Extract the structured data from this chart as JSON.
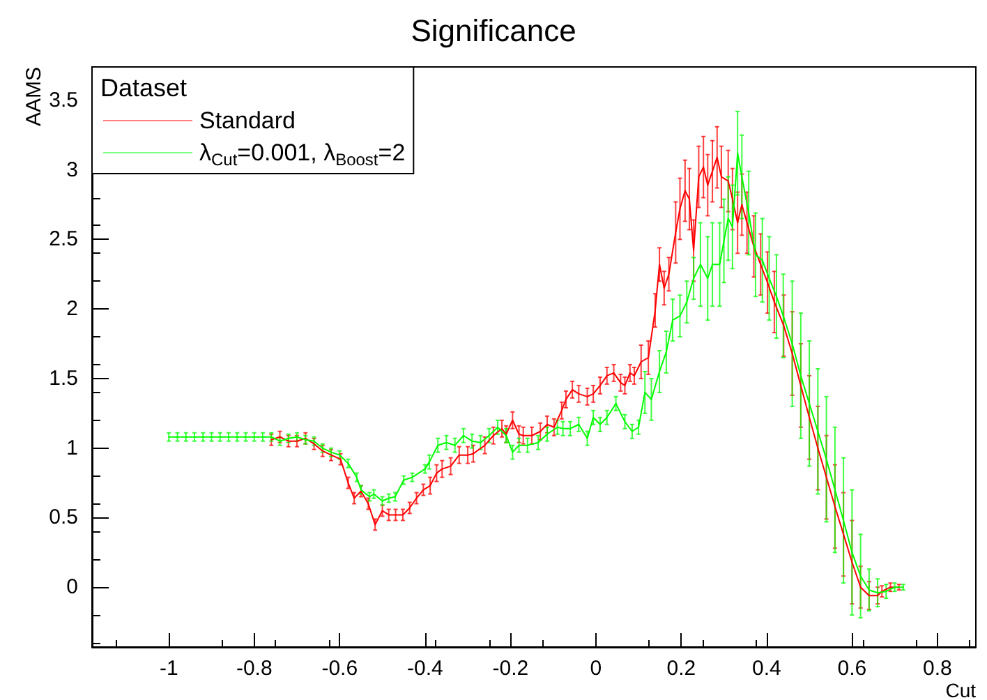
{
  "chart_data": {
    "type": "line",
    "title": "Significance",
    "xlabel": "Cut",
    "ylabel": "AAMS",
    "legend_title": "Dataset",
    "legend": "top left",
    "marker": "none",
    "grid": false,
    "xlim": [
      -1.18,
      0.89
    ],
    "ylim": [
      -0.43,
      3.74
    ],
    "xticks": [
      -1,
      -0.8,
      -0.6,
      -0.4,
      -0.2,
      0,
      0.2,
      0.4,
      0.6,
      0.8
    ],
    "yticks": [
      0,
      0.5,
      1,
      1.5,
      2,
      2.5,
      3,
      3.5
    ],
    "series": [
      {
        "name": "Standard",
        "color": "#ff0000",
        "x": [
          -0.76,
          -0.74,
          -0.72,
          -0.7,
          -0.68,
          -0.66,
          -0.64,
          -0.62,
          -0.598,
          -0.58,
          -0.566,
          -0.55,
          -0.533,
          -0.517,
          -0.5,
          -0.485,
          -0.469,
          -0.452,
          -0.436,
          -0.42,
          -0.404,
          -0.388,
          -0.373,
          -0.36,
          -0.34,
          -0.32,
          -0.3,
          -0.287,
          -0.26,
          -0.24,
          -0.22,
          -0.21,
          -0.195,
          -0.18,
          -0.17,
          -0.15,
          -0.13,
          -0.114,
          -0.098,
          -0.08,
          -0.07,
          -0.055,
          -0.04,
          -0.02,
          -0.006,
          0.01,
          0.026,
          0.042,
          0.058,
          0.068,
          0.08,
          0.09,
          0.106,
          0.123,
          0.139,
          0.149,
          0.16,
          0.171,
          0.187,
          0.197,
          0.209,
          0.219,
          0.229,
          0.241,
          0.252,
          0.262,
          0.273,
          0.284,
          0.294,
          0.31,
          0.32,
          0.332,
          0.342,
          0.354,
          0.37,
          0.386,
          0.402,
          0.418,
          0.44,
          0.46,
          0.48,
          0.5,
          0.52,
          0.54,
          0.56,
          0.58,
          0.6,
          0.62,
          0.64,
          0.66,
          0.67,
          0.69,
          0.71
        ],
        "values": [
          1.06,
          1.08,
          1.05,
          1.05,
          1.07,
          1.03,
          0.98,
          0.95,
          0.92,
          0.75,
          0.64,
          0.69,
          0.6,
          0.45,
          0.55,
          0.52,
          0.52,
          0.52,
          0.57,
          0.64,
          0.7,
          0.73,
          0.82,
          0.85,
          0.87,
          0.95,
          0.95,
          0.96,
          1.02,
          1.09,
          1.14,
          1.1,
          1.2,
          1.1,
          1.09,
          1.09,
          1.12,
          1.17,
          1.15,
          1.27,
          1.35,
          1.42,
          1.39,
          1.37,
          1.39,
          1.45,
          1.52,
          1.54,
          1.47,
          1.45,
          1.54,
          1.52,
          1.62,
          1.65,
          1.99,
          2.32,
          2.15,
          2.25,
          2.55,
          2.72,
          2.85,
          2.79,
          2.42,
          2.95,
          3.02,
          2.89,
          2.99,
          3.09,
          2.95,
          2.92,
          2.79,
          2.62,
          2.75,
          2.62,
          2.45,
          2.32,
          2.19,
          2.05,
          1.88,
          1.68,
          1.45,
          1.22,
          1.0,
          0.79,
          0.58,
          0.38,
          0.18,
          0,
          -0.06,
          -0.06,
          -0.03,
          0,
          0
        ],
        "errors": [
          0.04,
          0.04,
          0.04,
          0.04,
          0.04,
          0.04,
          0.04,
          0.04,
          0.04,
          0.04,
          0.04,
          0.04,
          0.04,
          0.04,
          0.04,
          0.04,
          0.04,
          0.04,
          0.04,
          0.04,
          0.04,
          0.06,
          0.06,
          0.06,
          0.06,
          0.06,
          0.06,
          0.06,
          0.06,
          0.06,
          0.06,
          0.06,
          0.06,
          0.06,
          0.06,
          0.06,
          0.06,
          0.06,
          0.06,
          0.06,
          0.06,
          0.06,
          0.06,
          0.06,
          0.06,
          0.06,
          0.06,
          0.06,
          0.06,
          0.06,
          0.06,
          0.06,
          0.12,
          0.12,
          0.12,
          0.12,
          0.12,
          0.12,
          0.22,
          0.22,
          0.22,
          0.22,
          0.22,
          0.22,
          0.22,
          0.22,
          0.22,
          0.22,
          0.22,
          0.22,
          0.22,
          0.22,
          0.22,
          0.22,
          0.22,
          0.22,
          0.22,
          0.22,
          0.22,
          0.3,
          0.3,
          0.3,
          0.3,
          0.3,
          0.3,
          0.3,
          0.3,
          0.15,
          0.1,
          0.06,
          0.04,
          0.03,
          0.02
        ]
      },
      {
        "name": "λ$_{Cut}$=0.001, λ$_{Boost}$=2",
        "color": "#00ff00",
        "x": [
          -1,
          -0.98,
          -0.96,
          -0.94,
          -0.92,
          -0.9,
          -0.88,
          -0.86,
          -0.84,
          -0.82,
          -0.8,
          -0.78,
          -0.76,
          -0.74,
          -0.72,
          -0.7,
          -0.68,
          -0.66,
          -0.64,
          -0.62,
          -0.6,
          -0.58,
          -0.56,
          -0.55,
          -0.53,
          -0.52,
          -0.5,
          -0.485,
          -0.47,
          -0.45,
          -0.43,
          -0.4,
          -0.39,
          -0.37,
          -0.35,
          -0.33,
          -0.31,
          -0.29,
          -0.27,
          -0.25,
          -0.23,
          -0.21,
          -0.195,
          -0.18,
          -0.16,
          -0.135,
          -0.114,
          -0.09,
          -0.077,
          -0.06,
          -0.04,
          -0.02,
          -0.006,
          0.01,
          0.026,
          0.047,
          0.068,
          0.085,
          0.1,
          0.115,
          0.13,
          0.149,
          0.165,
          0.18,
          0.197,
          0.213,
          0.229,
          0.245,
          0.262,
          0.273,
          0.29,
          0.3,
          0.31,
          0.32,
          0.332,
          0.342,
          0.358,
          0.374,
          0.39,
          0.406,
          0.423,
          0.439,
          0.46,
          0.48,
          0.5,
          0.52,
          0.54,
          0.56,
          0.58,
          0.6,
          0.62,
          0.64,
          0.66,
          0.68,
          0.7,
          0.72
        ],
        "values": [
          1.08,
          1.08,
          1.08,
          1.08,
          1.08,
          1.08,
          1.08,
          1.08,
          1.08,
          1.08,
          1.08,
          1.08,
          1.08,
          1.05,
          1.07,
          1.08,
          1.06,
          1.05,
          1.0,
          0.97,
          0.95,
          0.89,
          0.79,
          0.7,
          0.65,
          0.67,
          0.62,
          0.64,
          0.65,
          0.77,
          0.79,
          0.85,
          0.9,
          1.02,
          1.04,
          1.02,
          1.09,
          1.05,
          1.04,
          1.09,
          1.15,
          1.09,
          0.97,
          1.02,
          1.02,
          1.04,
          1.1,
          1.15,
          1.14,
          1.14,
          1.17,
          1.07,
          1.22,
          1.17,
          1.22,
          1.32,
          1.19,
          1.12,
          1.15,
          1.4,
          1.35,
          1.55,
          1.69,
          1.92,
          1.95,
          2.05,
          2.22,
          2.32,
          2.22,
          2.32,
          2.32,
          2.49,
          2.65,
          2.59,
          3.12,
          2.95,
          2.69,
          2.39,
          2.35,
          2.22,
          2.09,
          1.95,
          1.75,
          1.52,
          1.32,
          1.12,
          0.92,
          0.7,
          0.48,
          0.25,
          0.08,
          -0.02,
          -0.04,
          -0.03,
          0,
          0
        ],
        "errors": [
          0.03,
          0.03,
          0.03,
          0.03,
          0.03,
          0.03,
          0.03,
          0.03,
          0.03,
          0.03,
          0.03,
          0.03,
          0.03,
          0.03,
          0.03,
          0.03,
          0.03,
          0.03,
          0.03,
          0.03,
          0.03,
          0.03,
          0.03,
          0.03,
          0.03,
          0.03,
          0.03,
          0.03,
          0.03,
          0.03,
          0.03,
          0.03,
          0.05,
          0.05,
          0.05,
          0.05,
          0.05,
          0.05,
          0.05,
          0.05,
          0.05,
          0.05,
          0.05,
          0.05,
          0.05,
          0.05,
          0.05,
          0.05,
          0.05,
          0.05,
          0.05,
          0.05,
          0.05,
          0.05,
          0.05,
          0.05,
          0.05,
          0.05,
          0.05,
          0.15,
          0.15,
          0.15,
          0.15,
          0.15,
          0.15,
          0.15,
          0.15,
          0.3,
          0.3,
          0.3,
          0.3,
          0.3,
          0.3,
          0.3,
          0.3,
          0.3,
          0.3,
          0.3,
          0.3,
          0.3,
          0.3,
          0.3,
          0.45,
          0.45,
          0.45,
          0.45,
          0.45,
          0.45,
          0.45,
          0.45,
          0.3,
          0.15,
          0.1,
          0.05,
          0.03,
          0.02
        ]
      }
    ]
  }
}
